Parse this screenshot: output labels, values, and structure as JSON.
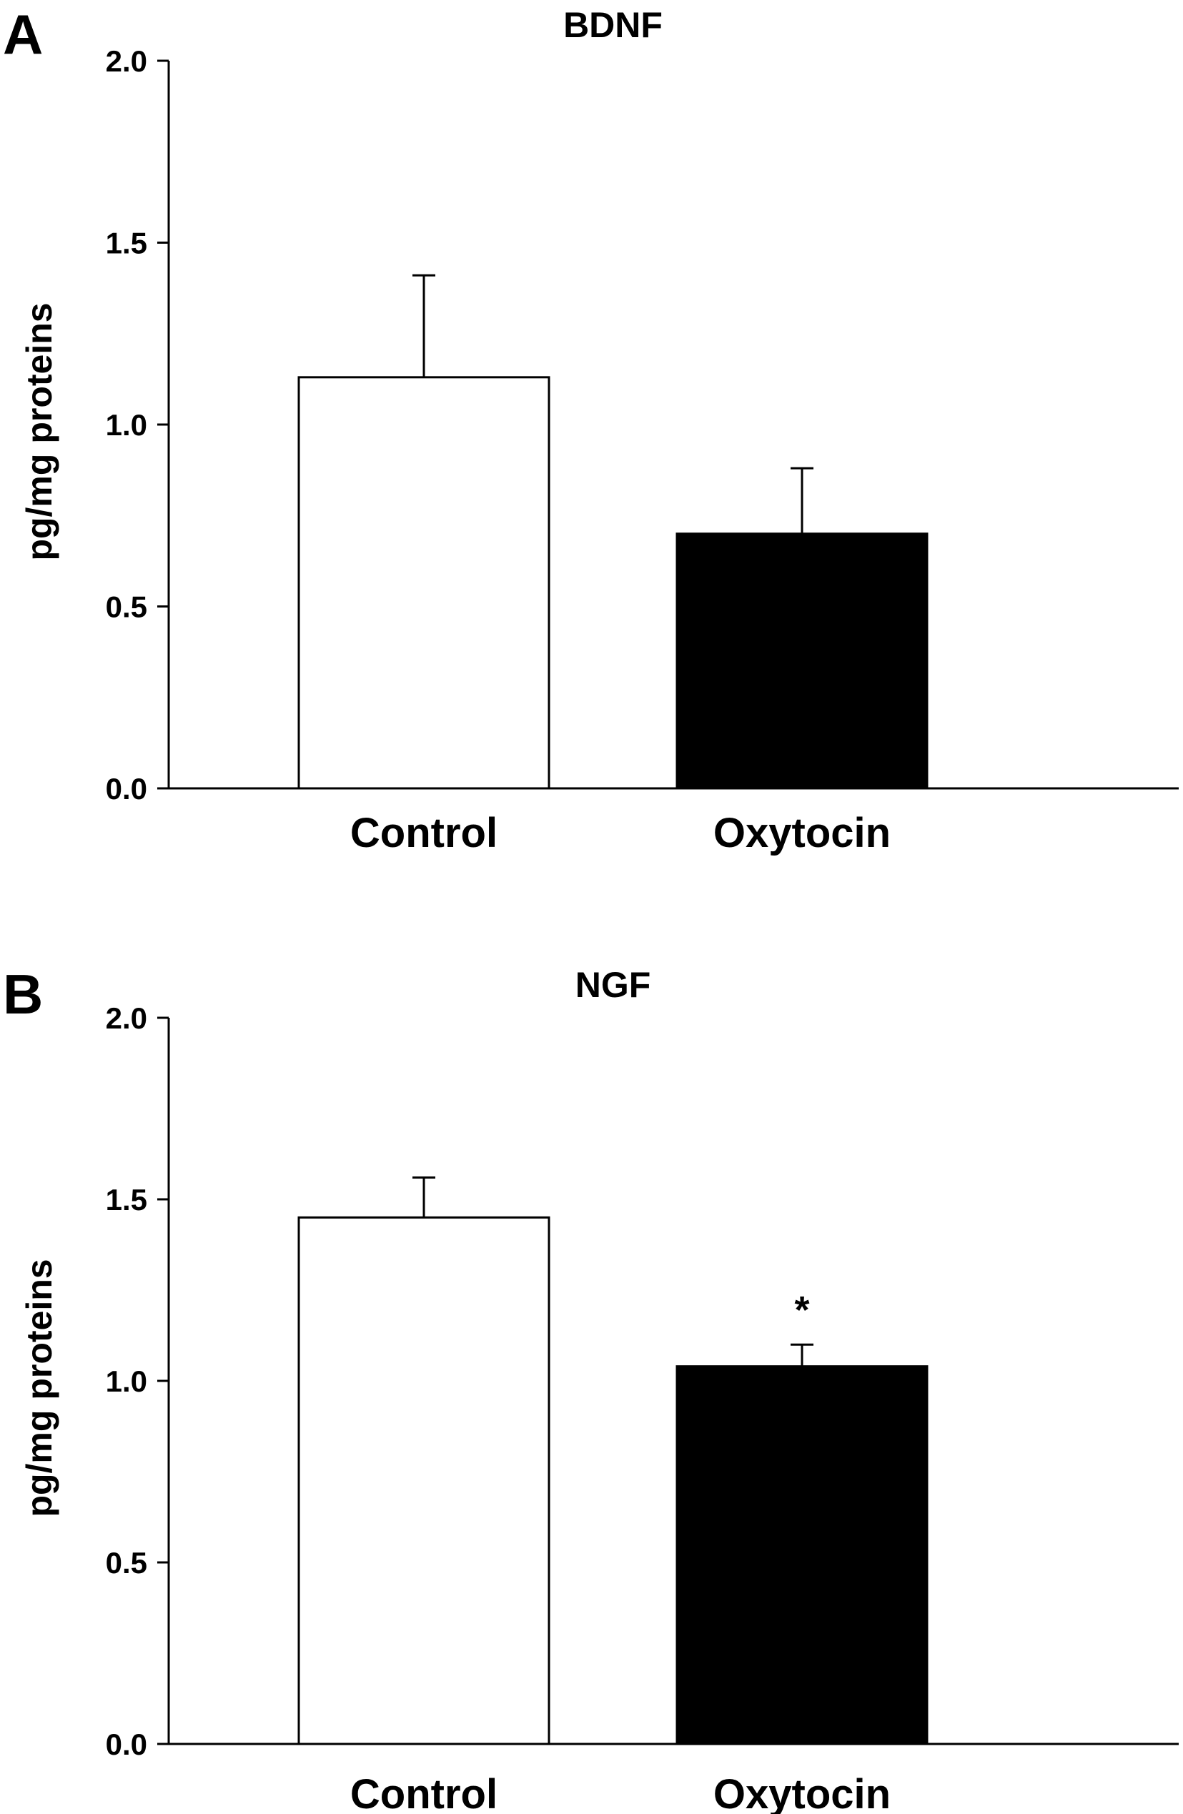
{
  "chart_data": [
    {
      "panel": "A",
      "type": "bar",
      "title": "BDNF",
      "xlabel": "",
      "ylabel": "pg/mg proteins",
      "ylim": [
        0,
        2.0
      ],
      "yticks": [
        "0.0",
        "0.5",
        "1.0",
        "1.5",
        "2.0"
      ],
      "categories": [
        "Control",
        "Oxytocin"
      ],
      "values": [
        1.13,
        0.7
      ],
      "errors": [
        0.28,
        0.18
      ],
      "bar_colors": [
        "#ffffff",
        "#000000"
      ],
      "annotations": [
        "",
        ""
      ],
      "grid": false
    },
    {
      "panel": "B",
      "type": "bar",
      "title": "NGF",
      "xlabel": "",
      "ylabel": "pg/mg proteins",
      "ylim": [
        0,
        2.0
      ],
      "yticks": [
        "0.0",
        "0.5",
        "1.0",
        "1.5",
        "2.0"
      ],
      "categories": [
        "Control",
        "Oxytocin"
      ],
      "values": [
        1.45,
        1.04
      ],
      "errors": [
        0.11,
        0.06
      ],
      "bar_colors": [
        "#ffffff",
        "#000000"
      ],
      "annotations": [
        "",
        "*"
      ],
      "grid": false
    }
  ]
}
